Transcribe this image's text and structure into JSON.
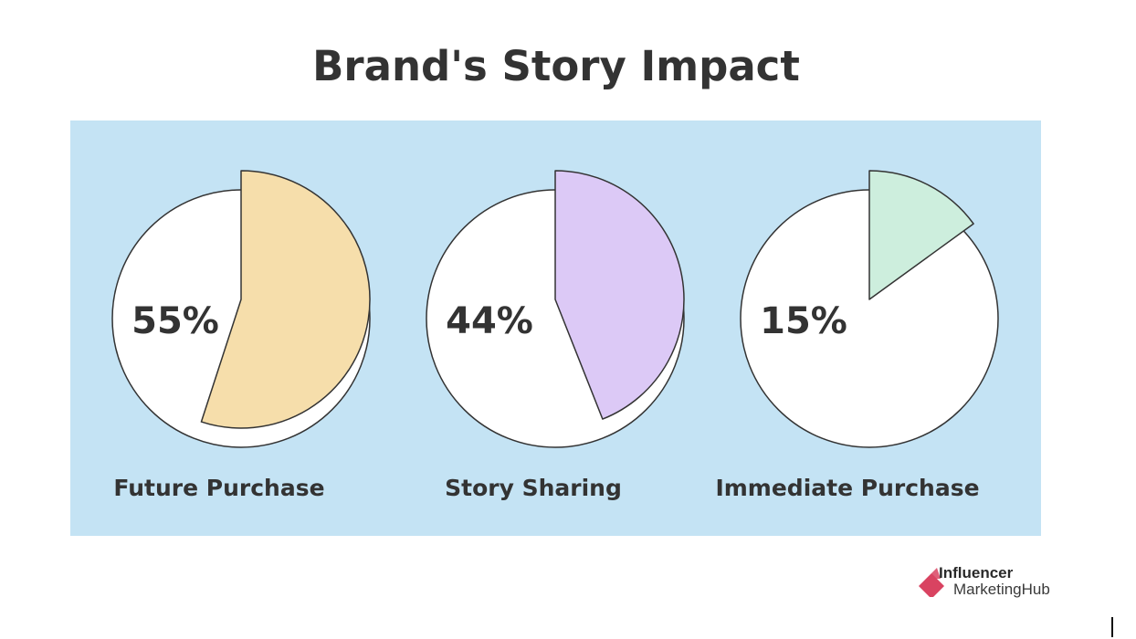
{
  "chart_data": {
    "type": "pie",
    "title": "Brand's Story Impact",
    "charts": [
      {
        "label": "Future Purchase",
        "value": 55,
        "value_label": "55%",
        "color": "#f6deab"
      },
      {
        "label": "Story Sharing",
        "value": 44,
        "value_label": "44%",
        "color": "#dcc9f6"
      },
      {
        "label": "Immediate Purchase",
        "value": 15,
        "value_label": "15%",
        "color": "#cdeedd"
      }
    ],
    "background_color": "#c4e3f4"
  },
  "logo": {
    "line1": "Influencer",
    "line2": "MarketingHub",
    "color": "#d94361"
  }
}
